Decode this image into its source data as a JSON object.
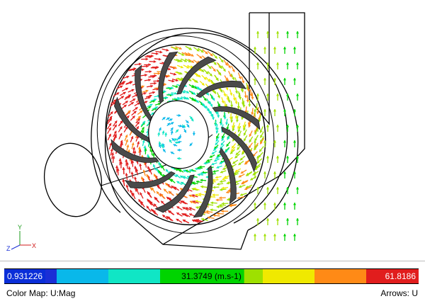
{
  "colorbar": {
    "min_label": "0.931226",
    "mid_label": "31.3749 (m.s-1)",
    "max_label": "61.8186",
    "colors": [
      "#1a2fd6",
      "#09b8ea",
      "#10e6c5",
      "#00d400",
      "#9ee000",
      "#f0e900",
      "#ff8a16",
      "#e11d1d"
    ]
  },
  "footer": {
    "color_map_label": "Color Map:",
    "color_map_value": "U:Mag",
    "arrows_label": "Arrows:",
    "arrows_value": "U"
  },
  "axes": {
    "y": "Y",
    "z": "Z",
    "x": "X"
  },
  "icons": {
    "axes_triad": "axes-triad-icon"
  }
}
